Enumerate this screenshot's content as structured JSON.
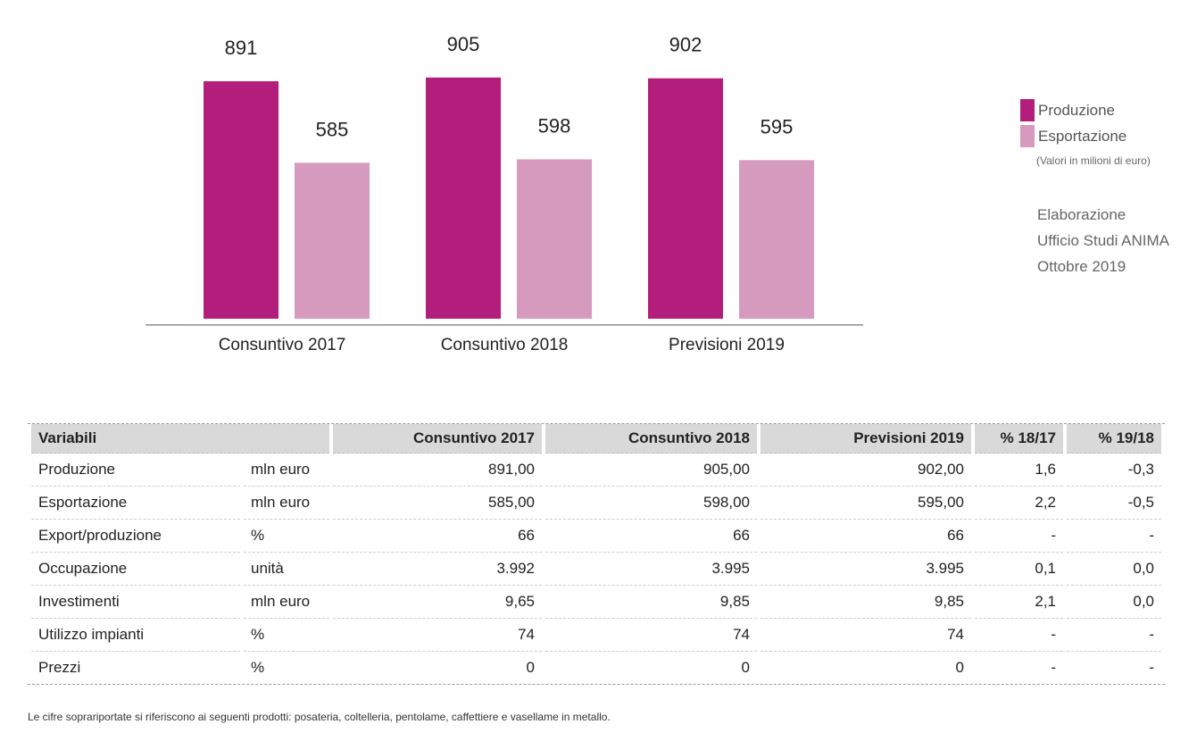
{
  "chart_data": {
    "type": "bar",
    "categories": [
      "Consuntivo 2017",
      "Consuntivo 2018",
      "Previsioni 2019"
    ],
    "series": [
      {
        "name": "Produzione",
        "values": [
          891,
          905,
          902
        ],
        "color": "#b31e7c"
      },
      {
        "name": "Esportazione",
        "values": [
          585,
          598,
          595
        ],
        "color": "#d69abf"
      }
    ],
    "ylim": [
      0,
      1000
    ],
    "unit_note": "(Valori in milioni di euro)"
  },
  "credit": [
    "Elaborazione",
    "Ufficio Studi ANIMA",
    "Ottobre 2019"
  ],
  "table": {
    "headers": [
      "Variabili",
      "Consuntivo 2017",
      "Consuntivo 2018",
      "Previsioni 2019",
      "% 18/17",
      "% 19/18"
    ],
    "rows": [
      [
        "Produzione",
        "mln euro",
        "891,00",
        "905,00",
        "902,00",
        "1,6",
        "-0,3"
      ],
      [
        "Esportazione",
        "mln euro",
        "585,00",
        "598,00",
        "595,00",
        "2,2",
        "-0,5"
      ],
      [
        "Export/produzione",
        "%",
        "66",
        "66",
        "66",
        "-",
        "-"
      ],
      [
        "Occupazione",
        "unità",
        "3.992",
        "3.995",
        "3.995",
        "0,1",
        "0,0"
      ],
      [
        "Investimenti",
        "mln euro",
        "9,65",
        "9,85",
        "9,85",
        "2,1",
        "0,0"
      ],
      [
        "Utilizzo impianti",
        "%",
        "74",
        "74",
        "74",
        "-",
        "-"
      ],
      [
        "Prezzi",
        "%",
        "0",
        "0",
        "0",
        "-",
        "-"
      ]
    ]
  },
  "footnote": "Le  cifre soprariportate si riferiscono ai seguenti prodotti: posateria, coltelleria, pentolame, caffettiere e vasellame in metallo."
}
